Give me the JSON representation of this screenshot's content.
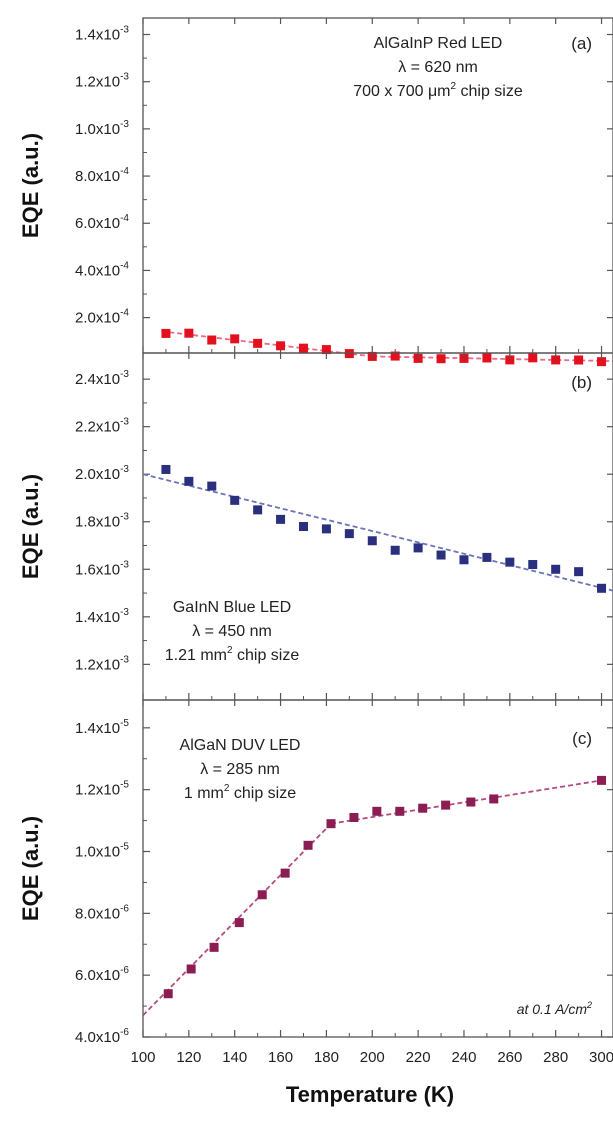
{
  "x_axis": {
    "label": "Temperature (K)",
    "range": [
      100,
      305
    ],
    "ticks": [
      100,
      120,
      140,
      160,
      180,
      200,
      220,
      240,
      260,
      280,
      300
    ],
    "tick_labels": [
      "100",
      "120",
      "140",
      "160",
      "180",
      "200",
      "220",
      "240",
      "260",
      "280",
      "300"
    ]
  },
  "condition": "at 0.1 A/cm²",
  "colors": {
    "red": "#e3101d",
    "red_line": "#e86a86",
    "blue": "#2a2f7e",
    "blue_line": "#6b74b8",
    "purple": "#8b1d52",
    "purple_line": "#b24b80"
  },
  "chart_data": [
    {
      "type": "scatter",
      "panel": "(a)",
      "ylabel": "EQE (a.u.)",
      "ylim": [
        5e-05,
        0.00147
      ],
      "yticks": [
        0.0002,
        0.0004,
        0.0006,
        0.0008,
        0.001,
        0.0012,
        0.0014
      ],
      "ytick_labels": [
        {
          "m": "2.0x10",
          "e": "-4"
        },
        {
          "m": "4.0x10",
          "e": "-4"
        },
        {
          "m": "6.0x10",
          "e": "-4"
        },
        {
          "m": "8.0x10",
          "e": "-4"
        },
        {
          "m": "1.0x10",
          "e": "-3"
        },
        {
          "m": "1.2x10",
          "e": "-3"
        },
        {
          "m": "1.4x10",
          "e": "-3"
        }
      ],
      "annotation": [
        {
          "t": "AlGaInP Red LED"
        },
        {
          "pre": "λ = 620 nm"
        },
        {
          "pre": "700 x 700 μm",
          "sup": "2",
          "post": " chip size"
        }
      ],
      "series": [
        {
          "x": [
            110,
            120,
            130,
            140,
            150,
            160,
            170,
            180,
            190,
            200,
            210,
            220,
            230,
            240,
            250,
            260,
            270,
            280,
            290,
            300
          ],
          "y": [
            0.000133,
            0.000134,
            0.000105,
            0.00011,
            9.1e-05,
            8.05e-05,
            7.05e-05,
            6.45e-05,
            4.75e-05,
            3.55e-05,
            3.7e-05,
            2.72e-05,
            2.57e-05,
            2.72e-05,
            2.9e-05,
            2.08e-05,
            2.95e-05,
            2.07e-05,
            2.03e-05,
            1.33e-05
          ]
        }
      ],
      "fit_lines": [
        {
          "x": [
            108,
            200
          ],
          "y": [
            0.000142,
            3.55e-05
          ]
        },
        {
          "x": [
            200,
            305
          ],
          "y": [
            3.55e-05,
            1.58e-05
          ]
        }
      ]
    },
    {
      "type": "scatter",
      "panel": "(b)",
      "ylabel": "EQE (a.u.)",
      "ylim": [
        0.00105,
        0.00251
      ],
      "yticks": [
        0.0012,
        0.0014,
        0.0016,
        0.0018,
        0.002,
        0.0022,
        0.0024
      ],
      "ytick_labels": [
        {
          "m": "1.2x10",
          "e": "-3"
        },
        {
          "m": "1.4x10",
          "e": "-3"
        },
        {
          "m": "1.6x10",
          "e": "-3"
        },
        {
          "m": "1.8x10",
          "e": "-3"
        },
        {
          "m": "2.0x10",
          "e": "-3"
        },
        {
          "m": "2.2x10",
          "e": "-3"
        },
        {
          "m": "2.4x10",
          "e": "-3"
        }
      ],
      "annotation": [
        {
          "t": "GaInN Blue LED"
        },
        {
          "pre": "λ = 450 nm"
        },
        {
          "pre": "1.21 mm",
          "sup": "2",
          "post": " chip size"
        }
      ],
      "series": [
        {
          "x": [
            110,
            120,
            130,
            140,
            150,
            160,
            170,
            180,
            190,
            200,
            210,
            220,
            230,
            240,
            250,
            260,
            270,
            280,
            290,
            300
          ],
          "y": [
            0.00202,
            0.00197,
            0.00195,
            0.00189,
            0.00185,
            0.00181,
            0.00178,
            0.00177,
            0.00175,
            0.00172,
            0.00168,
            0.00169,
            0.00166,
            0.00164,
            0.00165,
            0.00163,
            0.00162,
            0.0016,
            0.00159,
            0.00152
          ]
        }
      ],
      "fit_lines": [
        {
          "x": [
            100,
            305
          ],
          "y": [
            0.002,
            0.00151
          ]
        }
      ]
    },
    {
      "type": "scatter",
      "panel": "(c)",
      "ylabel": "EQE (a.u.)",
      "ylim": [
        4e-06,
        1.49e-05
      ],
      "yticks": [
        4e-06,
        6e-06,
        8e-06,
        1e-05,
        1.2e-05,
        1.4e-05
      ],
      "ytick_labels": [
        {
          "m": "4.0x10",
          "e": "-6"
        },
        {
          "m": "6.0x10",
          "e": "-6"
        },
        {
          "m": "8.0x10",
          "e": "-6"
        },
        {
          "m": "1.0x10",
          "e": "-5"
        },
        {
          "m": "1.2x10",
          "e": "-5"
        },
        {
          "m": "1.4x10",
          "e": "-5"
        }
      ],
      "annotation": [
        {
          "t": "AlGaN DUV LED"
        },
        {
          "pre": "λ = 285 nm"
        },
        {
          "pre": "1 mm",
          "sup": "2",
          "post": " chip size"
        }
      ],
      "series": [
        {
          "x": [
            111,
            121,
            131,
            142,
            152,
            162,
            172,
            182,
            192,
            202,
            212,
            222,
            232,
            243,
            253,
            300
          ],
          "y": [
            5.4e-06,
            6.2e-06,
            6.9e-06,
            7.7e-06,
            8.6e-06,
            9.3e-06,
            1.02e-05,
            1.09e-05,
            1.11e-05,
            1.13e-05,
            1.13e-05,
            1.14e-05,
            1.15e-05,
            1.16e-05,
            1.17e-05,
            1.23e-05
          ]
        }
      ],
      "fit_lines": [
        {
          "x": [
            100,
            182
          ],
          "y": [
            4.7e-06,
            1.09e-05
          ]
        },
        {
          "x": [
            182,
            300
          ],
          "y": [
            1.09e-05,
            1.23e-05
          ]
        }
      ]
    }
  ]
}
